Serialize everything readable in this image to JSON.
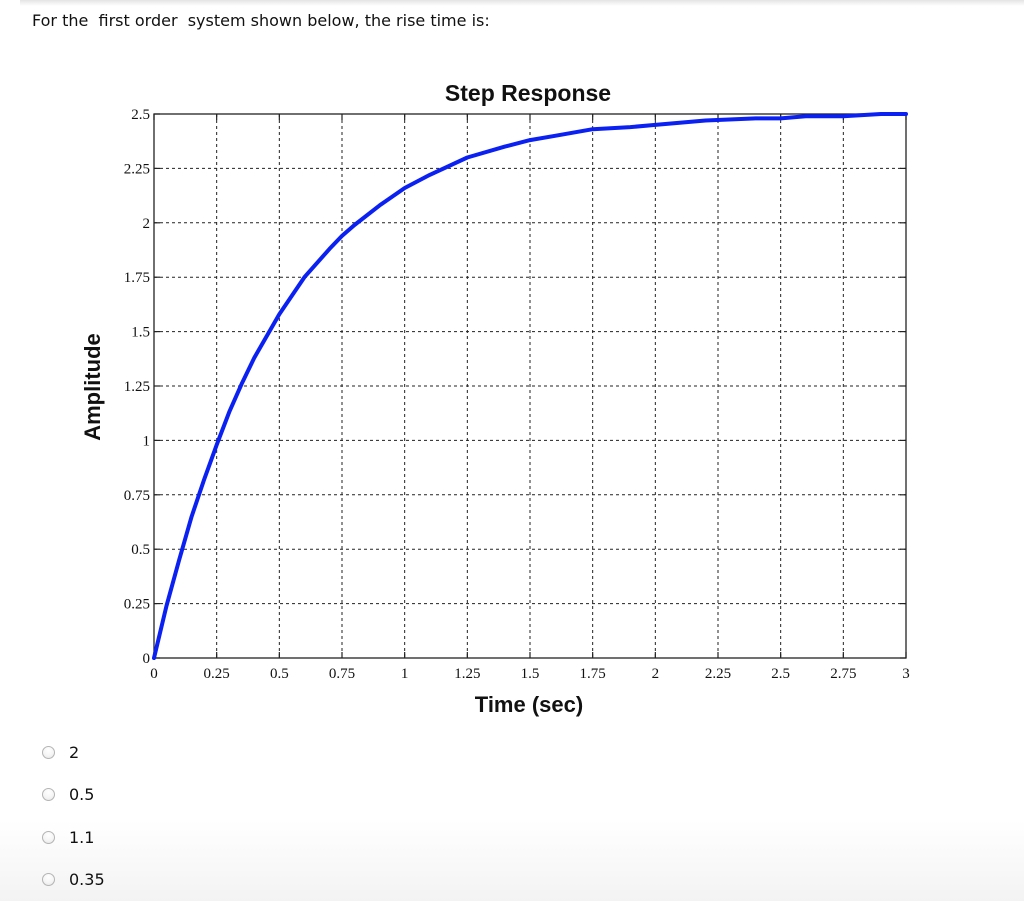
{
  "question": {
    "text": "For the  first order  system shown below, the rise time is:"
  },
  "options": [
    {
      "label": "2",
      "selected": false
    },
    {
      "label": "0.5",
      "selected": false
    },
    {
      "label": "1.1",
      "selected": false
    },
    {
      "label": "0.35",
      "selected": false
    }
  ],
  "chart_data": {
    "type": "line",
    "title": "Step Response",
    "xlabel": "Time (sec)",
    "ylabel": "Amplitude",
    "xlim": [
      0,
      3
    ],
    "ylim": [
      0,
      2.5
    ],
    "grid": true,
    "grid_style": "dotted",
    "x_ticks": [
      "0",
      "0.25",
      "0.5",
      "0.75",
      "1",
      "1.25",
      "1.5",
      "1.75",
      "2",
      "2.25",
      "2.5",
      "2.75",
      "3"
    ],
    "y_ticks": [
      "0",
      "0.25",
      "0.5",
      "0.75",
      "1",
      "1.25",
      "1.5",
      "1.75",
      "2",
      "2.25",
      "2.5"
    ],
    "line_color": "#0a21f2",
    "series": [
      {
        "name": "step response",
        "x": [
          0,
          0.05,
          0.1,
          0.15,
          0.2,
          0.25,
          0.3,
          0.35,
          0.4,
          0.5,
          0.6,
          0.7,
          0.75,
          0.8,
          0.9,
          1.0,
          1.1,
          1.25,
          1.4,
          1.5,
          1.6,
          1.75,
          1.9,
          2.0,
          2.2,
          2.4,
          2.5,
          2.6,
          2.75,
          2.9,
          3.0
        ],
        "values": [
          0,
          0.24,
          0.45,
          0.65,
          0.82,
          0.98,
          1.13,
          1.26,
          1.38,
          1.58,
          1.75,
          1.88,
          1.94,
          1.99,
          2.08,
          2.16,
          2.22,
          2.3,
          2.35,
          2.38,
          2.4,
          2.43,
          2.44,
          2.45,
          2.47,
          2.48,
          2.48,
          2.49,
          2.49,
          2.5,
          2.5
        ]
      }
    ]
  }
}
